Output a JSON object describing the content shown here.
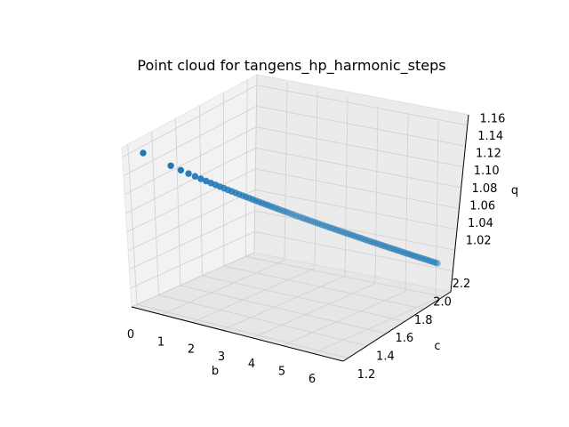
{
  "chart_data": {
    "type": "scatter",
    "projection": "3d",
    "title": "Point cloud for tangens_hp_harmonic_steps",
    "xlabel": "b",
    "ylabel": "c",
    "zlabel": "q",
    "xlim": [
      -0.3,
      6.9
    ],
    "ylim": [
      1.15,
      2.28
    ],
    "zlim": [
      1.0,
      1.17
    ],
    "xticks": [
      "0",
      "1",
      "2",
      "3",
      "4",
      "5",
      "6"
    ],
    "yticks": [
      "1.2",
      "1.4",
      "1.6",
      "1.8",
      "2.0",
      "2.2"
    ],
    "zticks": [
      "1.02",
      "1.04",
      "1.06",
      "1.08",
      "1.10",
      "1.12",
      "1.14",
      "1.16"
    ],
    "grid": true,
    "color": "#1f77b4",
    "point_count": 100,
    "series": [
      {
        "values": [
          {
            "b": 0.0,
            "c": 1.22,
            "q": 1.158
          },
          {
            "b": 0.25,
            "c": 1.28,
            "q": 1.131
          },
          {
            "b": 0.5,
            "c": 1.32,
            "q": 1.108
          },
          {
            "b": 0.75,
            "c": 1.35,
            "q": 1.092
          },
          {
            "b": 1.0,
            "c": 1.38,
            "q": 1.079
          },
          {
            "b": 1.5,
            "c": 1.44,
            "q": 1.058
          },
          {
            "b": 2.0,
            "c": 1.5,
            "q": 1.043
          },
          {
            "b": 3.0,
            "c": 1.62,
            "q": 1.024
          },
          {
            "b": 4.0,
            "c": 1.74,
            "q": 1.012
          },
          {
            "b": 5.0,
            "c": 1.86,
            "q": 1.004
          },
          {
            "b": 6.0,
            "c": 1.98,
            "q": 1.001
          },
          {
            "b": 6.28,
            "c": 2.25,
            "q": 1.0
          }
        ]
      }
    ]
  }
}
